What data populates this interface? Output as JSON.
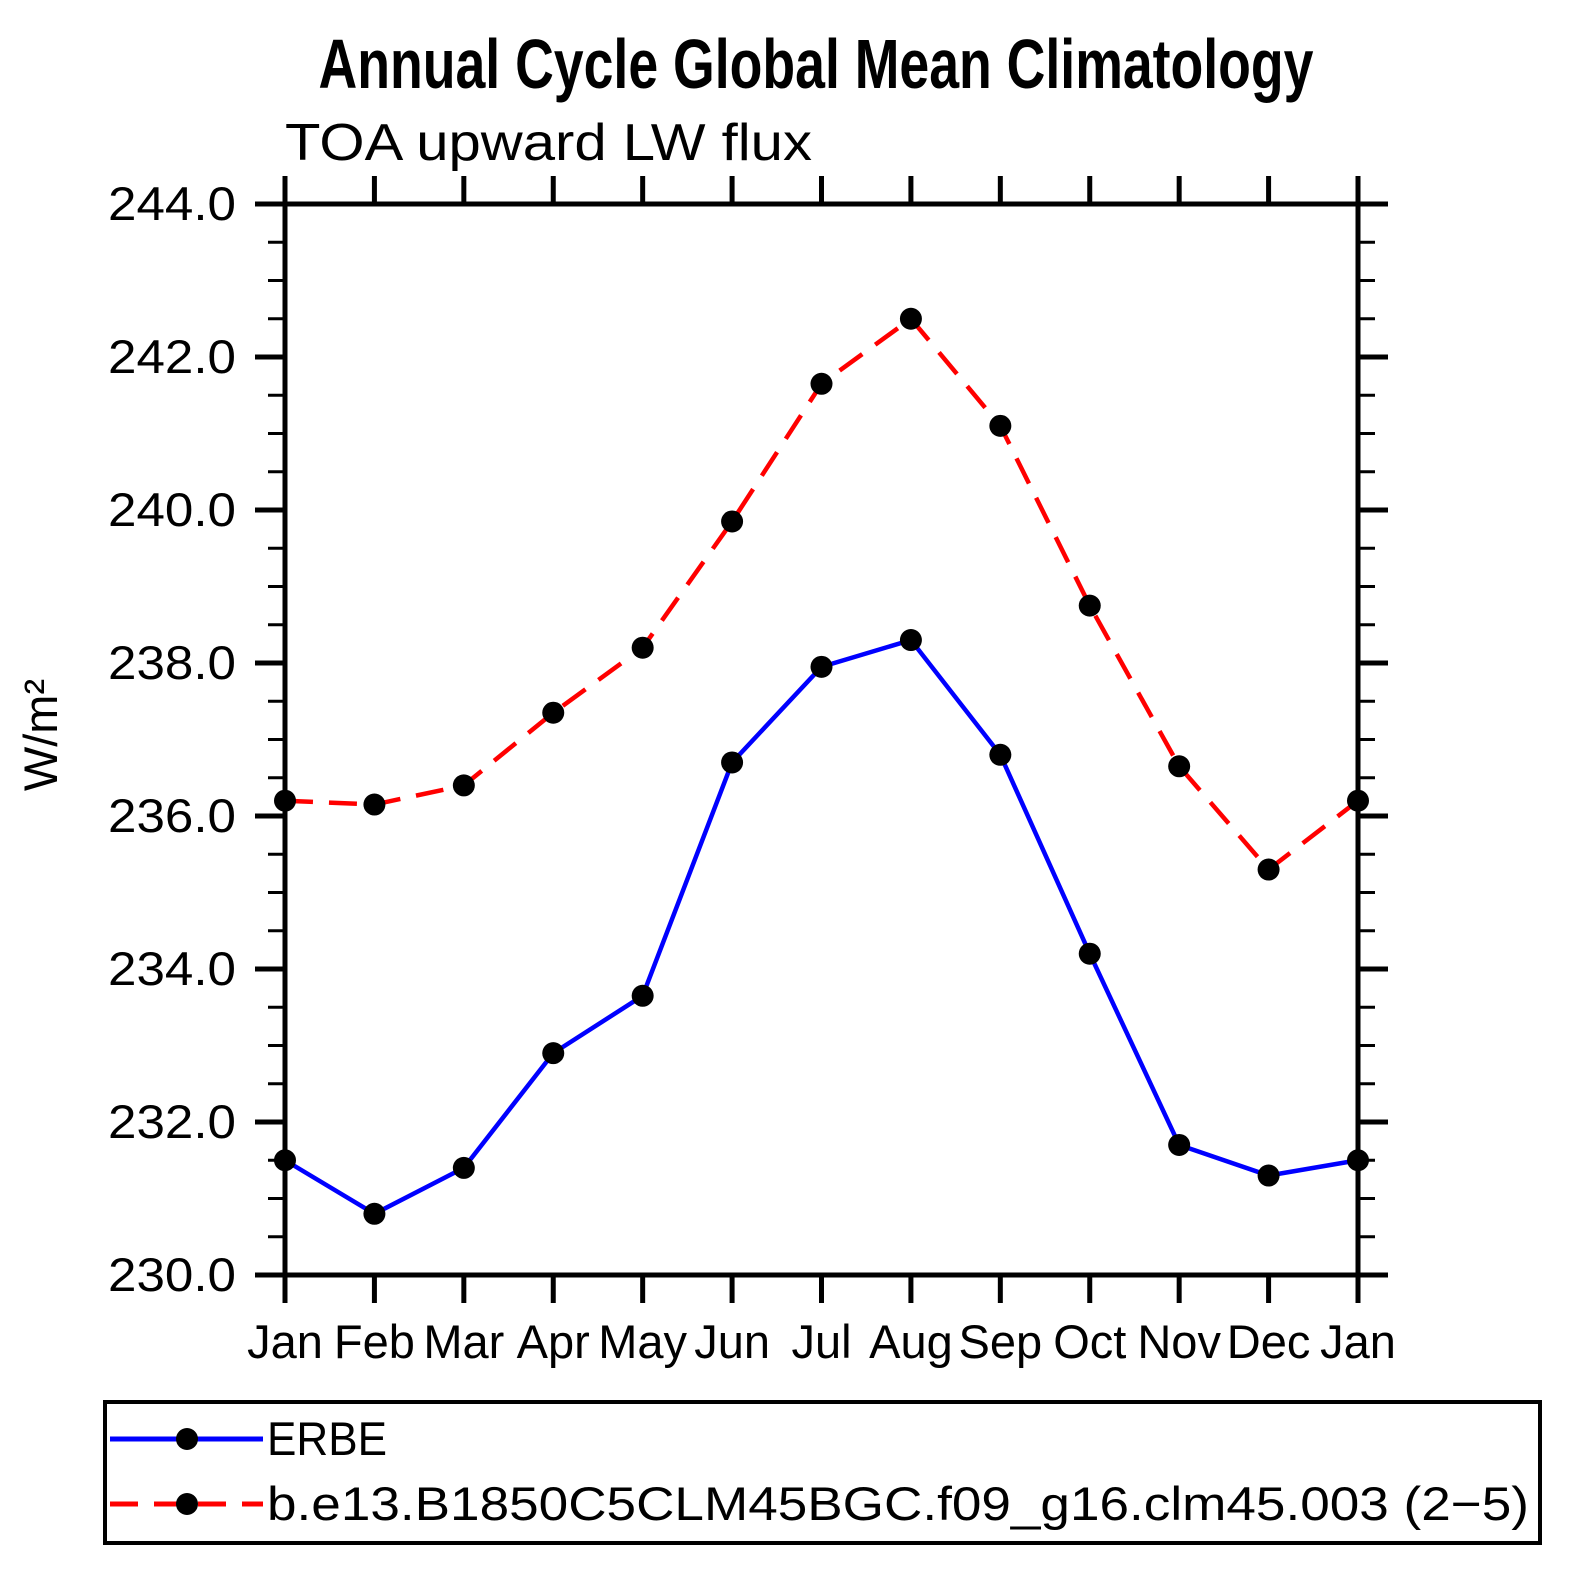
{
  "chart_data": {
    "type": "line",
    "title": "Annual Cycle Global Mean Climatology",
    "subtitle": "TOA upward LW flux",
    "ylabel": "W/m²",
    "categories": [
      "Jan",
      "Feb",
      "Mar",
      "Apr",
      "May",
      "Jun",
      "Jul",
      "Aug",
      "Sep",
      "Oct",
      "Nov",
      "Dec",
      "Jan"
    ],
    "ylim": [
      230.0,
      244.0
    ],
    "ytick_step": 2.0,
    "yminor_step": 0.5,
    "ytick_labels": [
      "230.0",
      "232.0",
      "234.0",
      "236.0",
      "238.0",
      "240.0",
      "242.0",
      "244.0"
    ],
    "grid": false,
    "legend_position": "bottom-left-box",
    "axis_color": "#000000",
    "marker_color": "#000000",
    "series": [
      {
        "name": "ERBE",
        "color": "#0000ff",
        "line_style": "solid",
        "marker": "filled-circle",
        "values": [
          231.5,
          230.8,
          231.4,
          232.9,
          233.65,
          236.7,
          237.95,
          238.3,
          236.8,
          234.2,
          231.7,
          231.3,
          231.5
        ]
      },
      {
        "name": "b.e13.B1850C5CLM45BGC.f09_g16.clm45.003 (2−5)",
        "color": "#ff0000",
        "line_style": "dashed",
        "marker": "filled-circle",
        "values": [
          236.2,
          236.15,
          236.4,
          237.35,
          238.2,
          239.85,
          241.65,
          242.5,
          241.1,
          238.75,
          236.65,
          235.3,
          236.2
        ]
      }
    ]
  }
}
